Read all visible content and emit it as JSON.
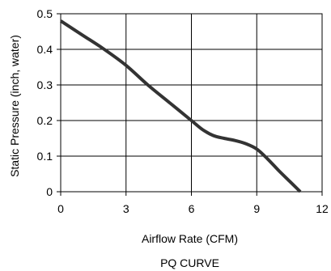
{
  "chart_data": {
    "type": "line",
    "title": "",
    "caption": "PQ CURVE",
    "xlabel": "Airflow Rate (CFM)",
    "ylabel": "Static Pressure (inch, water)",
    "xlim": [
      0,
      12
    ],
    "ylim": [
      0,
      0.5
    ],
    "x_ticks": [
      "0",
      "3",
      "6",
      "9",
      "12"
    ],
    "y_ticks": [
      "0",
      "0.1",
      "0.2",
      "0.3",
      "0.4",
      "0.5"
    ],
    "grid": true,
    "legend": "none",
    "line_color": "#333333",
    "series": [
      {
        "x": [
          0,
          1,
          2,
          3,
          4,
          5,
          6,
          6.5,
          7,
          7.5,
          8,
          8.5,
          9,
          9.5,
          10,
          10.5,
          11
        ],
        "values": [
          0.48,
          0.44,
          0.4,
          0.355,
          0.3,
          0.25,
          0.2,
          0.175,
          0.158,
          0.15,
          0.144,
          0.135,
          0.12,
          0.092,
          0.06,
          0.03,
          0.0
        ]
      }
    ]
  }
}
